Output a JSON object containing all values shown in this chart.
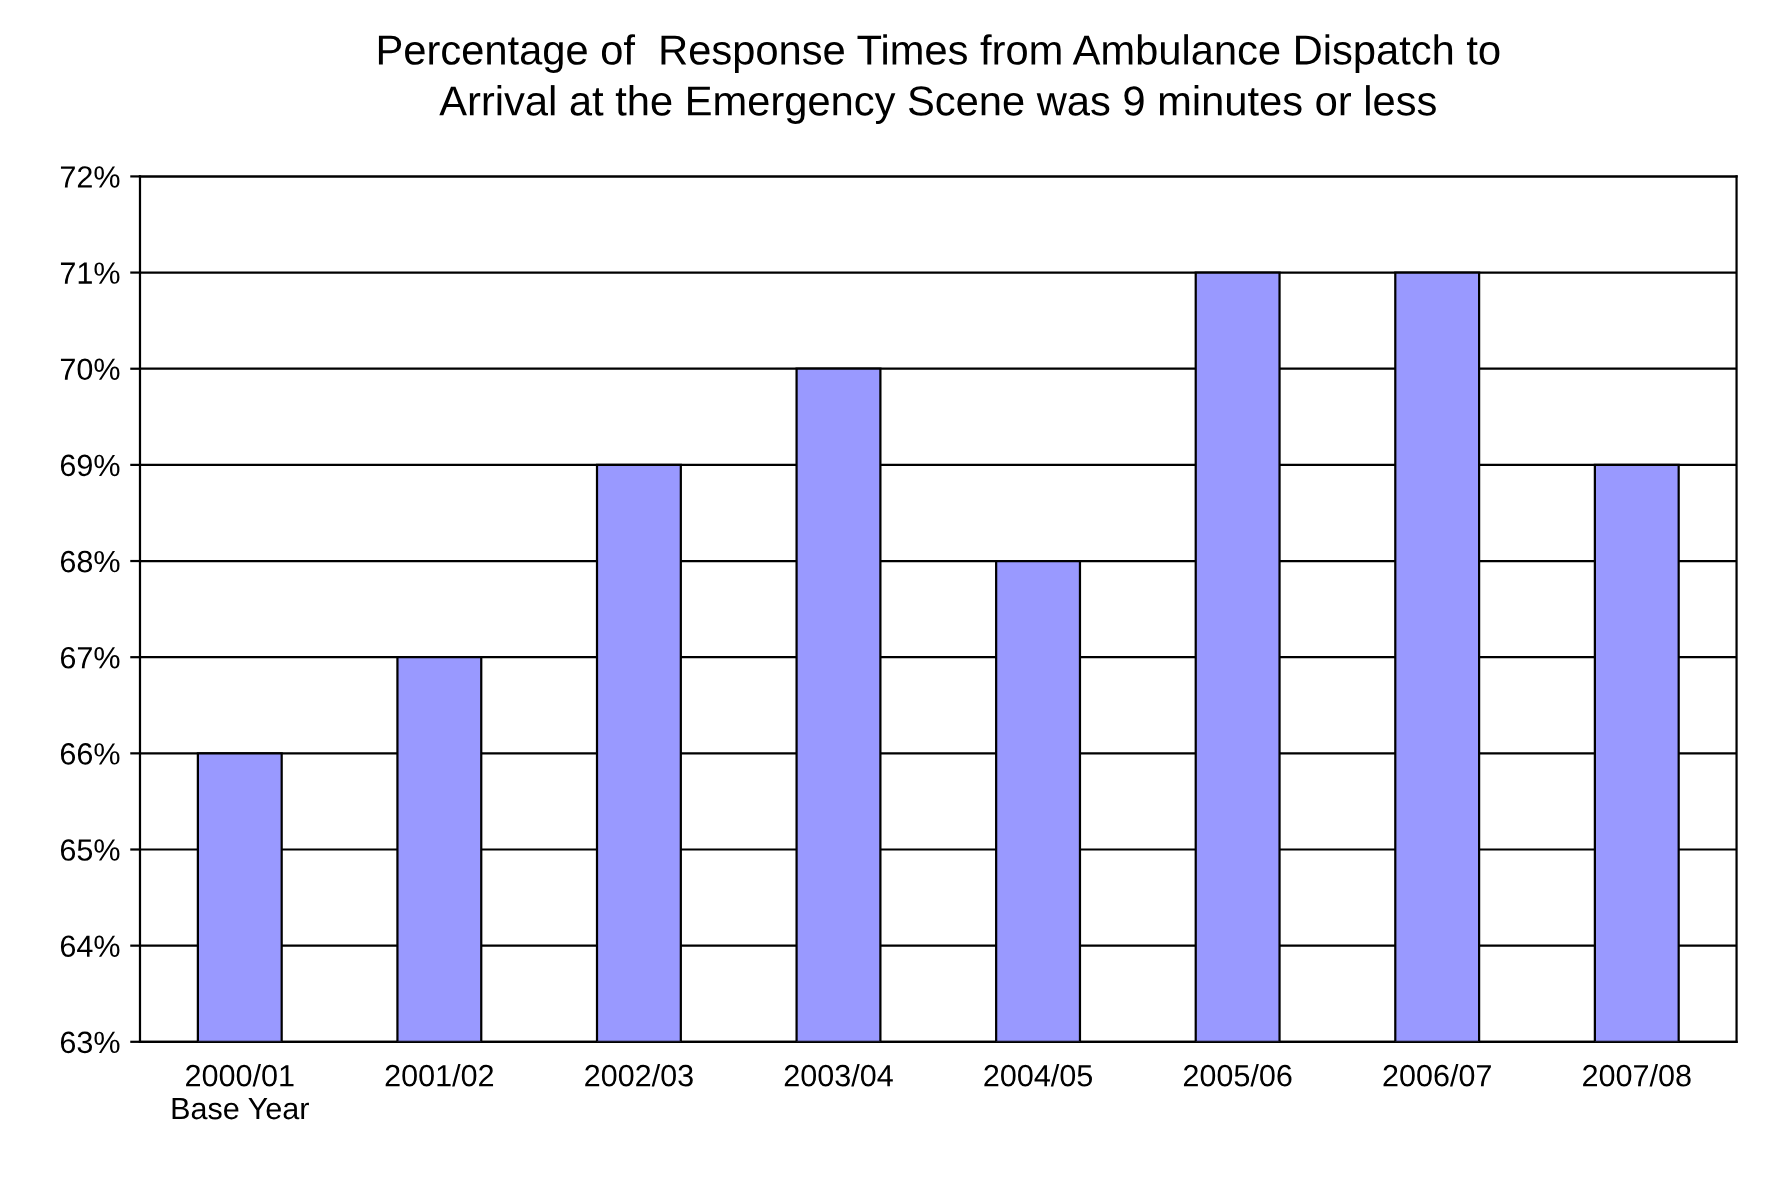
{
  "chart_data": {
    "type": "bar",
    "title": "Percentage of  Response Times from Ambulance Dispatch to\nArrival at the Emergency Scene was 9 minutes or less",
    "categories": [
      "2000/01\nBase Year",
      "2001/02",
      "2002/03",
      "2003/04",
      "2004/05",
      "2005/06",
      "2006/07",
      "2007/08"
    ],
    "values": [
      66,
      67,
      69,
      70,
      68,
      71,
      71,
      69
    ],
    "color": "#9999ff",
    "ylim": [
      63,
      72
    ],
    "yticks": [
      {
        "value": 63,
        "label": "63%"
      },
      {
        "value": 64,
        "label": "64%"
      },
      {
        "value": 65,
        "label": "65%"
      },
      {
        "value": 66,
        "label": "66%"
      },
      {
        "value": 67,
        "label": "67%"
      },
      {
        "value": 68,
        "label": "68%"
      },
      {
        "value": 69,
        "label": "69%"
      },
      {
        "value": 70,
        "label": "70%"
      },
      {
        "value": 71,
        "label": "71%"
      },
      {
        "value": 72,
        "label": "72%"
      }
    ],
    "grid": "y",
    "legend": false
  }
}
